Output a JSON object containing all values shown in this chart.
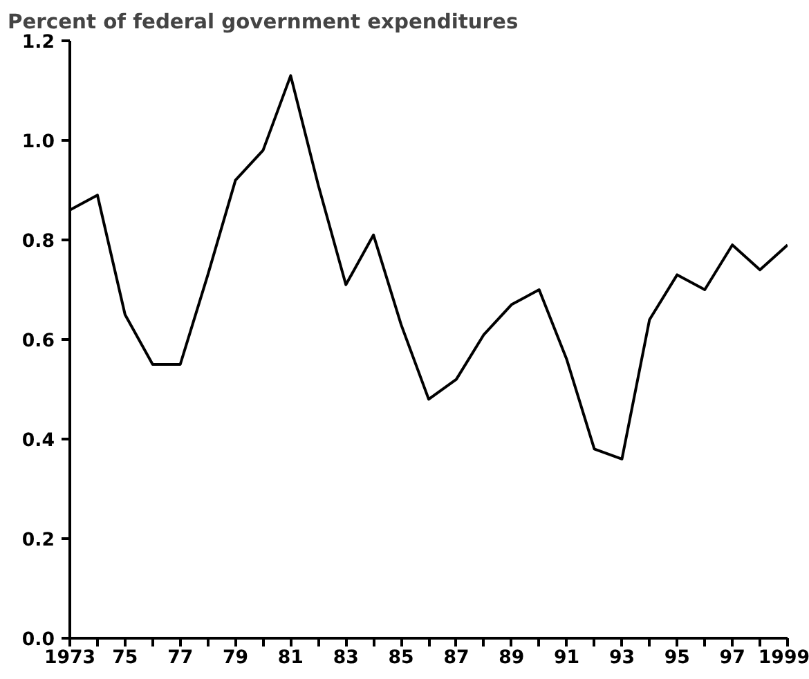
{
  "chart_data": {
    "type": "line",
    "title": "Percent of federal government expenditures",
    "x": [
      1973,
      1974,
      1975,
      1976,
      1977,
      1978,
      1979,
      1980,
      1981,
      1982,
      1983,
      1984,
      1985,
      1986,
      1987,
      1988,
      1989,
      1990,
      1991,
      1992,
      1993,
      1994,
      1995,
      1996,
      1997,
      1998,
      1999
    ],
    "series": [
      {
        "color": "#000000",
        "values": [
          0.86,
          0.89,
          0.65,
          0.55,
          0.55,
          0.73,
          0.92,
          0.98,
          1.13,
          0.91,
          0.71,
          0.81,
          0.63,
          0.48,
          0.52,
          0.61,
          0.67,
          0.7,
          0.56,
          0.38,
          0.36,
          0.64,
          0.73,
          0.7,
          0.79,
          0.74,
          0.79
        ]
      }
    ],
    "xlim": [
      1973,
      1999
    ],
    "xticks": [
      1973,
      {
        "value": 1974,
        "label": null
      },
      {
        "value": 1975,
        "label": "75"
      },
      {
        "value": 1976,
        "label": null
      },
      {
        "value": 1977,
        "label": "77"
      },
      {
        "value": 1978,
        "label": null
      },
      {
        "value": 1979,
        "label": "79"
      },
      {
        "value": 1980,
        "label": null
      },
      {
        "value": 1981,
        "label": "81"
      },
      {
        "value": 1982,
        "label": null
      },
      {
        "value": 1983,
        "label": "83"
      },
      {
        "value": 1984,
        "label": null
      },
      {
        "value": 1985,
        "label": "85"
      },
      {
        "value": 1986,
        "label": null
      },
      {
        "value": 1987,
        "label": "87"
      },
      {
        "value": 1988,
        "label": null
      },
      {
        "value": 1989,
        "label": "89"
      },
      {
        "value": 1990,
        "label": null
      },
      {
        "value": 1991,
        "label": "91"
      },
      {
        "value": 1992,
        "label": null
      },
      {
        "value": 1993,
        "label": "93"
      },
      {
        "value": 1994,
        "label": null
      },
      {
        "value": 1995,
        "label": "95"
      },
      {
        "value": 1996,
        "label": null
      },
      {
        "value": 1997,
        "label": "97"
      },
      {
        "value": 1998,
        "label": null
      },
      1999
    ],
    "ylim": [
      0,
      1.2
    ],
    "yticks": [
      {
        "value": 0,
        "label": "0.0"
      },
      {
        "value": 0.2,
        "label": "0.2"
      },
      {
        "value": 0.4,
        "label": "0.4"
      },
      {
        "value": 0.6,
        "label": "0.6"
      },
      {
        "value": 0.8,
        "label": "0.8"
      },
      {
        "value": 1.0,
        "label": "1.0"
      },
      {
        "value": 1.2,
        "label": "1.2"
      }
    ],
    "grid": false,
    "marker": "none",
    "line_style": "solid"
  }
}
